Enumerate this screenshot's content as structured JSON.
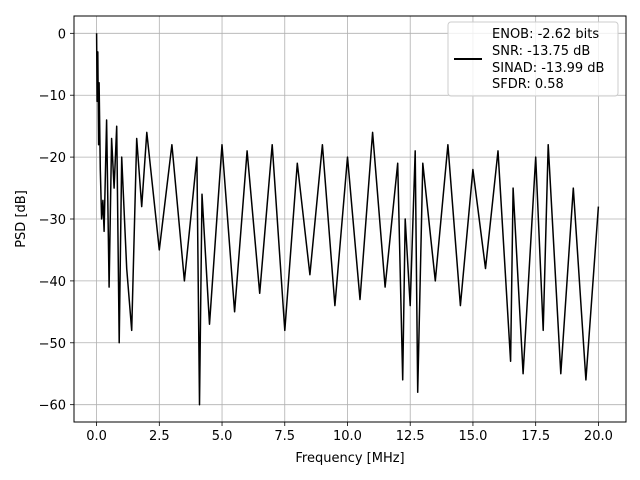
{
  "chart_data": {
    "type": "line",
    "xlabel": "Frequency [MHz]",
    "ylabel": "PSD [dB]",
    "xlim": [
      -0.9,
      21.1
    ],
    "ylim": [
      -62.8,
      2.8
    ],
    "xticks": [
      0.0,
      2.5,
      5.0,
      7.5,
      10.0,
      12.5,
      15.0,
      17.5,
      20.0
    ],
    "xtick_labels": [
      "0.0",
      "2.5",
      "5.0",
      "7.5",
      "10.0",
      "12.5",
      "15.0",
      "17.5",
      "20.0"
    ],
    "yticks": [
      0,
      -10,
      -20,
      -30,
      -40,
      -50,
      -60
    ],
    "ytick_labels": [
      "0",
      "−10",
      "−20",
      "−30",
      "−40",
      "−50",
      "−60"
    ],
    "grid": true,
    "legend_position": "top-right",
    "legend_lines": [
      "ENOB: -2.62 bits",
      "SNR: -13.75 dB",
      "SINAD: -13.99 dB",
      "SFDR: 0.58"
    ],
    "series": [
      {
        "color": "#000000",
        "x": [
          0.0,
          0.02,
          0.05,
          0.08,
          0.1,
          0.15,
          0.2,
          0.25,
          0.3,
          0.4,
          0.5,
          0.6,
          0.7,
          0.8,
          0.9,
          1.0,
          1.2,
          1.4,
          1.6,
          1.8,
          2.0,
          2.5,
          3.0,
          3.5,
          4.0,
          4.1,
          4.2,
          4.5,
          5.0,
          5.5,
          6.0,
          6.5,
          7.0,
          7.5,
          8.0,
          8.5,
          9.0,
          9.5,
          10.0,
          10.5,
          11.0,
          11.5,
          12.0,
          12.2,
          12.3,
          12.5,
          12.7,
          12.8,
          13.0,
          13.5,
          14.0,
          14.5,
          15.0,
          15.5,
          16.0,
          16.5,
          16.6,
          17.0,
          17.5,
          17.8,
          18.0,
          18.5,
          19.0,
          19.5,
          20.0
        ],
        "y": [
          0,
          -11,
          -3,
          -18,
          -8,
          -22,
          -30,
          -27,
          -32,
          -14,
          -41,
          -17,
          -25,
          -15,
          -50,
          -20,
          -38,
          -48,
          -17,
          -28,
          -16,
          -35,
          -18,
          -40,
          -20,
          -60,
          -26,
          -47,
          -18,
          -45,
          -19,
          -42,
          -18,
          -48,
          -21,
          -39,
          -18,
          -44,
          -20,
          -43,
          -16,
          -41,
          -21,
          -56,
          -30,
          -44,
          -19,
          -58,
          -21,
          -40,
          -18,
          -44,
          -22,
          -38,
          -19,
          -53,
          -25,
          -55,
          -20,
          -48,
          -18,
          -55,
          -25,
          -56,
          -28
        ]
      }
    ]
  }
}
